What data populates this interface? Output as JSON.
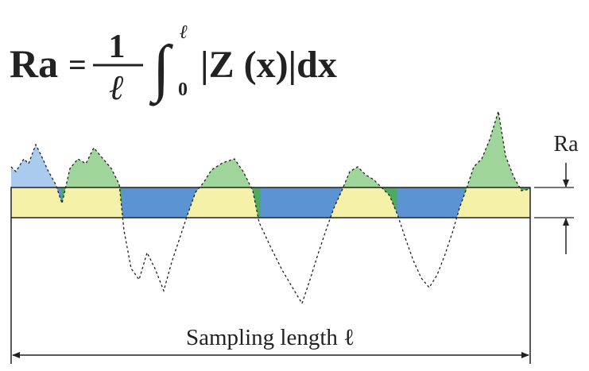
{
  "formula": {
    "lhs": "Ra",
    "equals": "=",
    "numerator": "1",
    "denominator": "ℓ",
    "integral": "∫",
    "upper_limit": "ℓ",
    "lower_limit": "0",
    "integrand": "|Z (x)|dx"
  },
  "labels": {
    "ra": "Ra",
    "sampling_length": "Sampling length ℓ"
  }
}
